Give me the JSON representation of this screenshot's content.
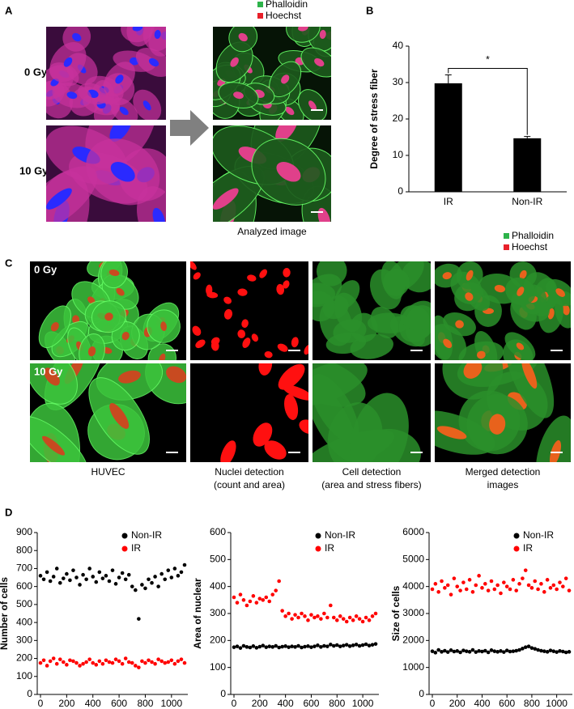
{
  "figure": {
    "panels": [
      "A",
      "B",
      "C",
      "D"
    ],
    "row_labels_a": [
      "0 Gy",
      "10 Gy"
    ],
    "row_labels_c": [
      "0 Gy",
      "10 Gy"
    ],
    "stain_legend_a": [
      {
        "name": "Phalloidin",
        "color": "#2db34a"
      },
      {
        "name": "Hoechst",
        "color": "#e8202a"
      }
    ],
    "stain_legend_c": [
      {
        "name": "Phalloidin",
        "color": "#2db34a"
      },
      {
        "name": "Hoechst",
        "color": "#e8202a"
      }
    ],
    "caption_a": "Analyzed image",
    "captions_c": [
      [
        "HUVEC"
      ],
      [
        "Nuclei detection",
        "(count and area)"
      ],
      [
        "Cell detection",
        "(area and stress fibers)"
      ],
      [
        "Merged detection",
        "images"
      ]
    ]
  },
  "chart_data": [
    {
      "type": "bar",
      "y_label": "Degree of stress fiber",
      "categories": [
        "IR",
        "Non-IR"
      ],
      "values": [
        29.8,
        14.7
      ],
      "errors": [
        2.3,
        0.5
      ],
      "color": "#000000",
      "annotation": "*",
      "ylim": [
        0,
        40
      ],
      "yticks": [
        0,
        10,
        20,
        30,
        40
      ]
    },
    {
      "type": "scatter",
      "y_label": "Number of cells",
      "xlim": [
        0,
        1100
      ],
      "xticks": [
        0,
        200,
        400,
        600,
        800,
        1000
      ],
      "ylim": [
        0,
        900
      ],
      "yticks": [
        0,
        100,
        200,
        300,
        400,
        500,
        600,
        700,
        800,
        900
      ],
      "x": [
        0,
        25,
        50,
        75,
        100,
        125,
        150,
        175,
        200,
        225,
        250,
        275,
        300,
        325,
        350,
        375,
        400,
        425,
        450,
        475,
        500,
        525,
        550,
        575,
        600,
        625,
        650,
        675,
        700,
        725,
        750,
        775,
        800,
        825,
        850,
        875,
        900,
        925,
        950,
        975,
        1000,
        1025,
        1050,
        1075,
        1100
      ],
      "series": [
        {
          "name": "Non-IR",
          "color": "#000000",
          "values": [
            660,
            640,
            680,
            630,
            655,
            700,
            620,
            645,
            670,
            635,
            690,
            650,
            610,
            665,
            640,
            700,
            655,
            625,
            680,
            645,
            660,
            630,
            690,
            615,
            650,
            675,
            640,
            665,
            600,
            580,
            420,
            610,
            590,
            640,
            620,
            655,
            600,
            670,
            640,
            690,
            650,
            700,
            660,
            680,
            720
          ]
        },
        {
          "name": "IR",
          "color": "#ff0000",
          "values": [
            175,
            190,
            160,
            185,
            200,
            170,
            195,
            180,
            165,
            190,
            185,
            175,
            160,
            170,
            180,
            195,
            175,
            165,
            185,
            170,
            190,
            180,
            175,
            195,
            185,
            170,
            200,
            180,
            175,
            160,
            150,
            185,
            175,
            190,
            180,
            170,
            195,
            185,
            175,
            180,
            190,
            170,
            185,
            195,
            175
          ]
        }
      ]
    },
    {
      "type": "scatter",
      "y_label": "Area of nuclear",
      "xlim": [
        0,
        1100
      ],
      "xticks": [
        0,
        200,
        400,
        600,
        800,
        1000
      ],
      "ylim": [
        0,
        600
      ],
      "yticks": [
        0,
        100,
        200,
        300,
        400,
        500,
        600
      ],
      "x": [
        0,
        25,
        50,
        75,
        100,
        125,
        150,
        175,
        200,
        225,
        250,
        275,
        300,
        325,
        350,
        375,
        400,
        425,
        450,
        475,
        500,
        525,
        550,
        575,
        600,
        625,
        650,
        675,
        700,
        725,
        750,
        775,
        800,
        825,
        850,
        875,
        900,
        925,
        950,
        975,
        1000,
        1025,
        1050,
        1075,
        1100
      ],
      "series": [
        {
          "name": "Non-IR",
          "color": "#000000",
          "values": [
            175,
            178,
            172,
            180,
            176,
            174,
            179,
            173,
            177,
            181,
            175,
            178,
            176,
            180,
            174,
            177,
            179,
            175,
            178,
            176,
            180,
            174,
            177,
            179,
            175,
            178,
            182,
            176,
            180,
            178,
            185,
            180,
            183,
            178,
            181,
            184,
            179,
            182,
            185,
            180,
            183,
            186,
            181,
            184,
            187
          ]
        },
        {
          "name": "IR",
          "color": "#ff0000",
          "values": [
            360,
            340,
            370,
            350,
            330,
            345,
            365,
            340,
            355,
            350,
            360,
            345,
            370,
            385,
            420,
            310,
            290,
            300,
            280,
            295,
            285,
            300,
            290,
            275,
            295,
            285,
            290,
            280,
            300,
            285,
            330,
            285,
            275,
            290,
            280,
            270,
            285,
            275,
            290,
            280,
            270,
            285,
            275,
            290,
            300
          ]
        }
      ]
    },
    {
      "type": "scatter",
      "y_label": "Size of cells",
      "xlim": [
        0,
        1100
      ],
      "xticks": [
        0,
        200,
        400,
        600,
        800,
        1000
      ],
      "ylim": [
        0,
        6000
      ],
      "yticks": [
        0,
        1000,
        2000,
        3000,
        4000,
        5000,
        6000
      ],
      "x": [
        0,
        25,
        50,
        75,
        100,
        125,
        150,
        175,
        200,
        225,
        250,
        275,
        300,
        325,
        350,
        375,
        400,
        425,
        450,
        475,
        500,
        525,
        550,
        575,
        600,
        625,
        650,
        675,
        700,
        725,
        750,
        775,
        800,
        825,
        850,
        875,
        900,
        925,
        950,
        975,
        1000,
        1025,
        1050,
        1075,
        1100
      ],
      "series": [
        {
          "name": "Non-IR",
          "color": "#000000",
          "values": [
            1600,
            1550,
            1650,
            1580,
            1620,
            1570,
            1640,
            1590,
            1610,
            1560,
            1630,
            1600,
            1580,
            1650,
            1570,
            1610,
            1590,
            1620,
            1560,
            1640,
            1600,
            1580,
            1610,
            1570,
            1630,
            1590,
            1600,
            1620,
            1650,
            1700,
            1750,
            1780,
            1720,
            1690,
            1650,
            1620,
            1600,
            1580,
            1630,
            1600,
            1570,
            1610,
            1590,
            1560,
            1580
          ]
        },
        {
          "name": "IR",
          "color": "#ff0000",
          "values": [
            3900,
            4100,
            3800,
            4200,
            3950,
            4050,
            3700,
            4300,
            4000,
            3850,
            4150,
            3900,
            4250,
            3800,
            4050,
            4400,
            3950,
            4100,
            3850,
            4200,
            3900,
            4050,
            3750,
            4150,
            4000,
            3900,
            4250,
            3850,
            4100,
            4300,
            4600,
            4050,
            3950,
            4200,
            3900,
            4100,
            3800,
            4250,
            3950,
            4050,
            3900,
            4150,
            4000,
            4300,
            3850
          ]
        }
      ]
    }
  ]
}
